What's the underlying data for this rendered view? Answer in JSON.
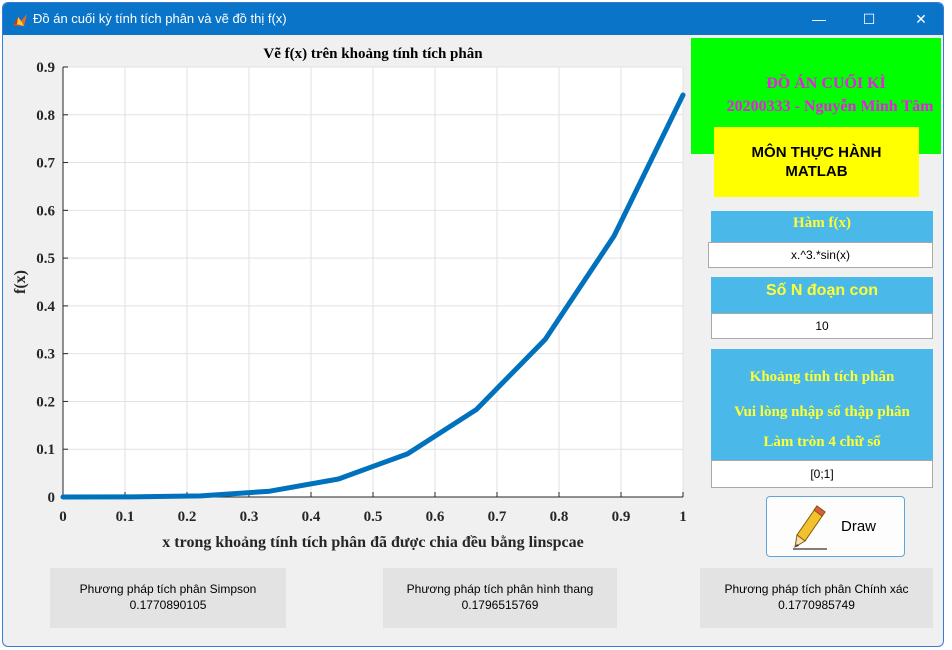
{
  "window": {
    "title": "Đồ án cuối kỳ tính tích phân và vẽ đồ thị f(x)",
    "minimize_glyph": "—",
    "maximize_glyph": "☐",
    "close_glyph": "✕"
  },
  "chart_data": {
    "type": "line",
    "title": "Vẽ f(x) trên khoảng tính tích phân",
    "xlabel": "x trong khoảng tính tích phân đã được chia đều bằng linspcae",
    "ylabel": "f(x)",
    "xlim": [
      0,
      1
    ],
    "ylim": [
      0,
      0.9
    ],
    "grid": true,
    "x_ticks": [
      "0",
      "0.1",
      "0.2",
      "0.3",
      "0.4",
      "0.5",
      "0.6",
      "0.7",
      "0.8",
      "0.9",
      "1"
    ],
    "y_ticks": [
      "0",
      "0.1",
      "0.2",
      "0.3",
      "0.4",
      "0.5",
      "0.6",
      "0.7",
      "0.8",
      "0.9"
    ],
    "series": [
      {
        "color": "#0072bd",
        "x": [
          0,
          0.1111,
          0.2222,
          0.3333,
          0.4444,
          0.5556,
          0.6667,
          0.7778,
          0.8889,
          1
        ],
        "y": [
          0,
          0.0002,
          0.0024,
          0.0121,
          0.0377,
          0.0903,
          0.183,
          0.33,
          0.5465,
          0.8415
        ]
      }
    ]
  },
  "header_banner": {
    "line1": "ĐỒ ÁN CUỐI KÌ",
    "line2": "20200333 - Nguyễn Minh Tâm"
  },
  "subject_banner": {
    "line1": "MÔN THỰC HÀNH",
    "line2": "MATLAB"
  },
  "function_field": {
    "label": "Hàm f(x)",
    "value": "x.^3.*sin(x)"
  },
  "segments_field": {
    "label": "Số  N đoạn con",
    "value": "10"
  },
  "interval_field": {
    "label_lines": [
      "Khoảng tính tích phân",
      "Vui lòng nhập số thập phân",
      "Làm tròn 4 chữ số"
    ],
    "value": "[0;1]"
  },
  "draw_button": {
    "label": "Draw",
    "icon": "pencil-icon"
  },
  "results": [
    {
      "label": "Phương pháp tích phân Simpson",
      "value": "0.1770890105"
    },
    {
      "label": "Phương pháp tích phân hình thang",
      "value": "0.1796515769"
    },
    {
      "label": "Phương pháp tích phân Chính xác",
      "value": "0.1770985749"
    }
  ]
}
